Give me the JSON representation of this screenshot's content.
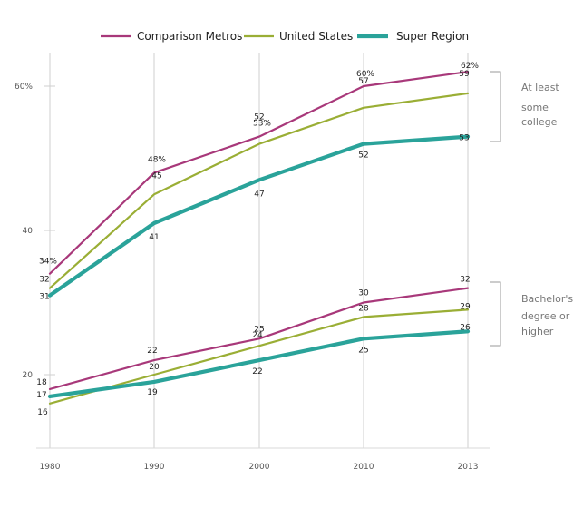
{
  "chart_data": {
    "type": "line",
    "x": [
      1980,
      1990,
      2000,
      2010,
      2013
    ],
    "ylim": [
      10,
      65
    ],
    "yticks": [
      {
        "value": 20,
        "label": "20"
      },
      {
        "value": 40,
        "label": "40"
      },
      {
        "value": 60,
        "label": "60%"
      }
    ],
    "xticks": [
      "1980",
      "1990",
      "2000",
      "2010",
      "2013"
    ],
    "grid": "vertical lines at each x value",
    "legend_placement": "top",
    "groups": [
      {
        "annotation": [
          "At least",
          "some",
          "college"
        ],
        "series": [
          {
            "name": "Comparison Metros",
            "values": [
              34,
              48,
              53,
              60,
              62
            ],
            "labels": [
              "34%",
              "48%",
              "53%",
              "60%",
              "62%"
            ]
          },
          {
            "name": "United States",
            "values": [
              32,
              45,
              52,
              57,
              59
            ],
            "labels": [
              "32",
              "45",
              "52",
              "57",
              "59"
            ]
          },
          {
            "name": "Super Region",
            "values": [
              31,
              41,
              47,
              52,
              53
            ],
            "labels": [
              "31",
              "41",
              "47",
              "52",
              "53"
            ]
          }
        ]
      },
      {
        "annotation": [
          "Bachelor's",
          "degree or",
          "higher"
        ],
        "series": [
          {
            "name": "Comparison Metros",
            "values": [
              18,
              22,
              25,
              30,
              32
            ],
            "labels": [
              "18",
              "22",
              "25",
              "30",
              "32"
            ]
          },
          {
            "name": "United States",
            "values": [
              16,
              20,
              24,
              28,
              29
            ],
            "labels": [
              "16",
              "20",
              "24",
              "28",
              "29"
            ]
          },
          {
            "name": "Super Region",
            "values": [
              17,
              19,
              22,
              25,
              26
            ],
            "labels": [
              "17",
              "19",
              "22",
              "25",
              "26"
            ]
          }
        ]
      }
    ],
    "legend": [
      {
        "name": "Comparison Metros",
        "color": "#a8387a"
      },
      {
        "name": "United States",
        "color": "#9aae35"
      },
      {
        "name": "Super Region",
        "color": "#2aa39a"
      }
    ]
  }
}
